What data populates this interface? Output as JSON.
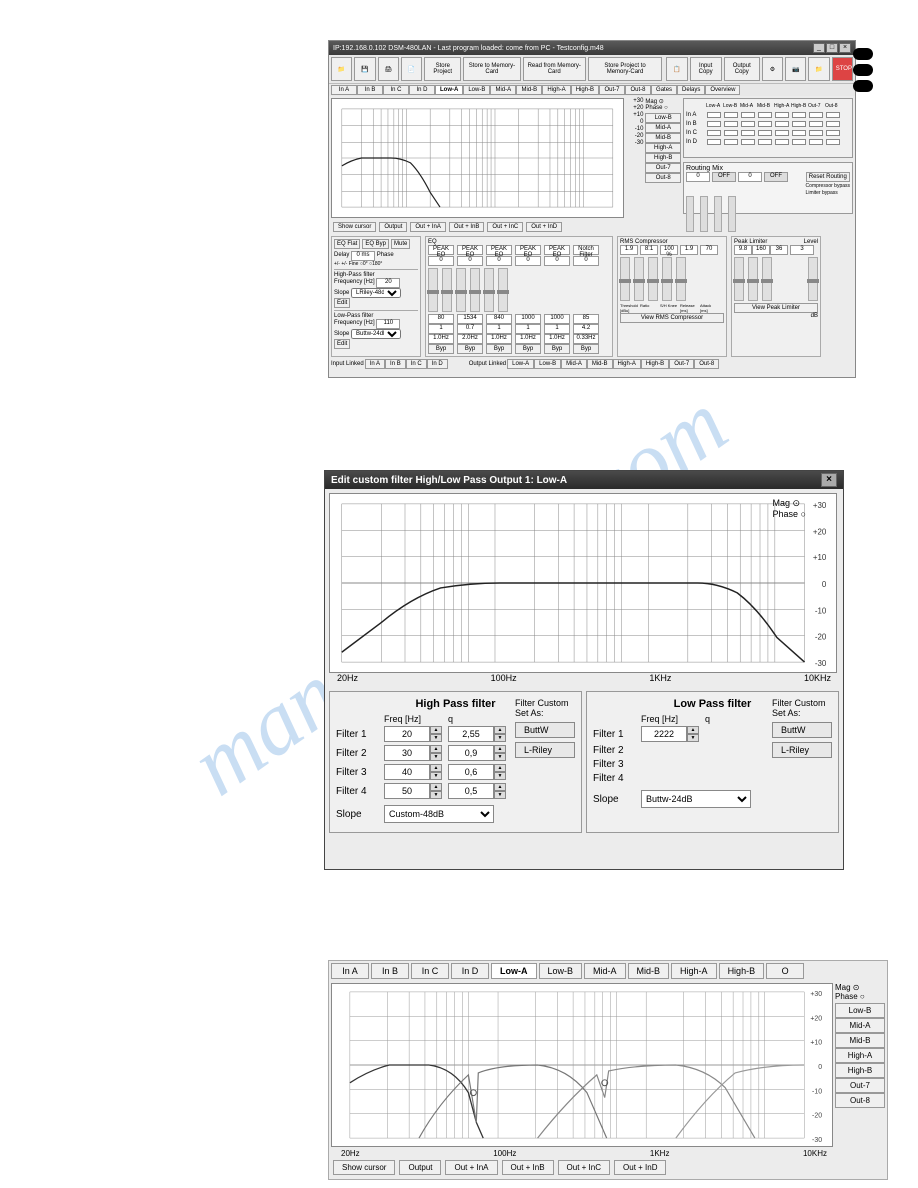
{
  "watermark": "manualshive.com",
  "win1": {
    "title": "IP:192.168.0.102 DSM-480LAN - Last program loaded: come from PC - Testconfig.m48",
    "toolbar": [
      "",
      "",
      "",
      "",
      "Store Project",
      "Store to Memory-Card",
      "Read from Memory-Card",
      "Store Project to Memory-Card",
      "",
      "Input Copy",
      "Output Copy",
      "",
      "",
      "",
      "STOP"
    ],
    "tabs": [
      "In A",
      "In B",
      "In C",
      "In D",
      "Low-A",
      "Low-B",
      "Mid-A",
      "Mid-B",
      "High-A",
      "High-B",
      "Out-7",
      "Out-8",
      "Gates",
      "Delays",
      "Overview"
    ],
    "active_tab": 4,
    "chart": {
      "xlabels": [
        "20Hz",
        "100Hz",
        "1KHz",
        "10KHz"
      ],
      "yticks": [
        30,
        20,
        10,
        0,
        -10,
        -20,
        -30
      ],
      "bg": "#ffffff",
      "grid": "#888888",
      "line": "#333333"
    },
    "legend": {
      "mag": "Mag",
      "phase": "Phase"
    },
    "sidebtns": [
      "Low-B",
      "Mid-A",
      "Mid-B",
      "High-A",
      "High-B",
      "Out-7",
      "Out-8"
    ],
    "matrix": {
      "rows": [
        "In A",
        "In B",
        "In C",
        "In D"
      ],
      "cols": [
        "Low-A",
        "Low-B",
        "Mid-A",
        "Mid-B",
        "High-A",
        "High-B",
        "Out-7",
        "Out-8"
      ]
    },
    "routing": {
      "title": "Routing Mix",
      "vals": [
        "0",
        "OFF",
        "0",
        "OFF"
      ],
      "labels": [
        "InA",
        "InB",
        "InC",
        "InD"
      ],
      "reset": "Reset Routing",
      "comp": "Compressor bypass",
      "lim": "Limiter bypass"
    },
    "btmbtns": [
      "Show cursor",
      "Output",
      "Out + InA",
      "Out + InB",
      "Out + InC",
      "Out + InD"
    ],
    "eq": {
      "flat": "EQ Flat",
      "byp": "EQ Byp",
      "mute": "Mute",
      "delay_lbl": "Delay",
      "delay_val": "0 ms",
      "fine": "+/- +/- Fine",
      "phase_lbl": "Phase",
      "phase_0": "0°",
      "phase_180": "180°"
    },
    "hpf": {
      "title": "High-Pass filter",
      "freq_lbl": "Frequency [Hz]",
      "freq": "20",
      "slope_lbl": "Slope",
      "slope": "LRiley-48dB",
      "edit": "Edit"
    },
    "lpf": {
      "title": "Low-Pass filter",
      "freq_lbl": "Frequency [Hz]",
      "freq": "110",
      "slope_lbl": "Slope",
      "slope": "Buttw-24dB",
      "edit": "Edit"
    },
    "eqsection": {
      "title": "EQ",
      "types": [
        "PEAK EQ",
        "PEAK EQ",
        "PEAK EQ",
        "PEAK EQ",
        "PEAK EQ",
        "Notch Filter"
      ],
      "zeros": [
        "0",
        "0",
        "0",
        "0",
        "0",
        "0"
      ],
      "freqs": [
        "80",
        "1534",
        "840",
        "1000",
        "1000",
        "85"
      ],
      "qs": [
        "1",
        "0.7",
        "1",
        "1",
        "1",
        "4.2"
      ],
      "bws": [
        "1.0Hz",
        "2.0Hz",
        "1.0Hz",
        "1.0Hz",
        "1.0Hz",
        "0.33Hz"
      ],
      "byp": "Byp"
    },
    "rms": {
      "title": "RMS Compressor",
      "vals": [
        "1.9",
        "8:1",
        "100 %",
        "1.9",
        "70"
      ],
      "labels": [
        "Threshold [dBu]",
        "Ratio",
        "S/H Knee",
        "Release [ms]",
        "Attack [ms]"
      ],
      "view": "View RMS Compressor"
    },
    "peak": {
      "title": "Peak Limiter",
      "vals": [
        "9.8",
        "160",
        "36"
      ],
      "labels": [
        "Threshold [dBu]",
        "Release [ms]",
        "Attack [ms]"
      ],
      "view": "View Peak Limiter",
      "level_lbl": "Level",
      "level": "3",
      "db": "dB"
    },
    "linked": {
      "in_lbl": "Input Linked",
      "ins": [
        "In A",
        "In B",
        "In C",
        "In D"
      ],
      "out_lbl": "Output Linked",
      "outs": [
        "Low-A",
        "Low-B",
        "Mid-A",
        "Mid-B",
        "High-A",
        "High-B",
        "Out-7",
        "Out-8"
      ]
    }
  },
  "win2": {
    "title": "Edit custom filter High/Low Pass Output 1: Low-A",
    "chart": {
      "xlabels": [
        "20Hz",
        "100Hz",
        "1KHz",
        "10KHz"
      ],
      "yticks": [
        30,
        20,
        10,
        0,
        -10,
        -20,
        -30
      ],
      "bg": "#ffffff",
      "grid": "#888888"
    },
    "legend": {
      "mag": "Mag",
      "phase": "Phase"
    },
    "hp": {
      "title": "High Pass filter",
      "freq_hdr": "Freq [Hz]",
      "q_hdr": "q",
      "filters": [
        {
          "lbl": "Filter 1",
          "freq": "20",
          "q": "2,55"
        },
        {
          "lbl": "Filter 2",
          "freq": "30",
          "q": "0,9"
        },
        {
          "lbl": "Filter 3",
          "freq": "40",
          "q": "0,6"
        },
        {
          "lbl": "Filter 4",
          "freq": "50",
          "q": "0,5"
        }
      ],
      "slope_lbl": "Slope",
      "slope": "Custom-48dB",
      "fca_lbl": "Filter Custom Set As:",
      "buttw": "ButtW",
      "lriley": "L-Riley"
    },
    "lp": {
      "title": "Low Pass filter",
      "freq_hdr": "Freq [Hz]",
      "q_hdr": "q",
      "filters": [
        {
          "lbl": "Filter 1",
          "freq": "2222",
          "q": ""
        },
        {
          "lbl": "Filter 2",
          "freq": "",
          "q": ""
        },
        {
          "lbl": "Filter 3",
          "freq": "",
          "q": ""
        },
        {
          "lbl": "Filter 4",
          "freq": "",
          "q": ""
        }
      ],
      "slope_lbl": "Slope",
      "slope": "Buttw-24dB",
      "fca_lbl": "Filter Custom Set As:",
      "buttw": "ButtW",
      "lriley": "L-Riley"
    }
  },
  "win3": {
    "tabs": [
      "In A",
      "In B",
      "In C",
      "In D",
      "Low-A",
      "Low-B",
      "Mid-A",
      "Mid-B",
      "High-A",
      "High-B",
      "O"
    ],
    "active_tab": 4,
    "chart": {
      "xlabels": [
        "20Hz",
        "100Hz",
        "1KHz",
        "10KHz"
      ],
      "yticks": [
        30,
        20,
        10,
        0,
        -10,
        -20,
        -30
      ]
    },
    "legend": {
      "mag": "Mag",
      "phase": "Phase"
    },
    "sidebtns": [
      "Low-B",
      "Mid-A",
      "Mid-B",
      "High-A",
      "High-B",
      "Out-7",
      "Out-8"
    ],
    "btm": [
      "Show cursor",
      "Output",
      "Out + InA",
      "Out + InB",
      "Out + InC",
      "Out + InD"
    ]
  }
}
